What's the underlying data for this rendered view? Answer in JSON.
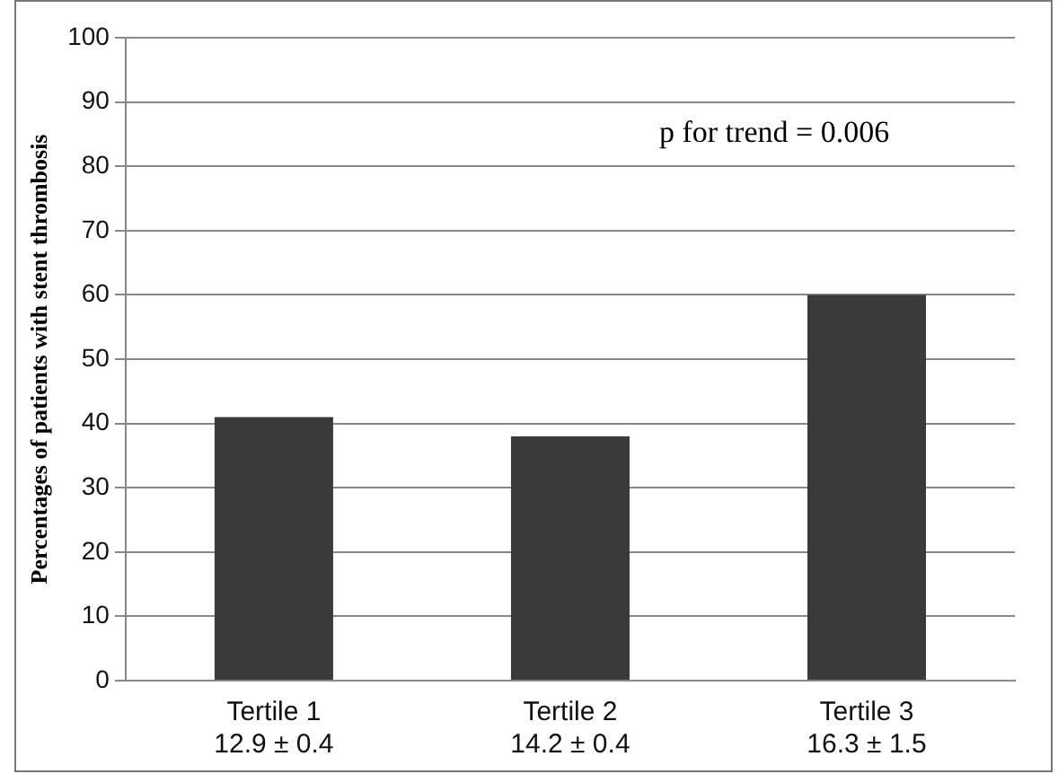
{
  "chart_data": {
    "type": "bar",
    "ylabel": "Percentages of patients with stent thrombosis",
    "categories": [
      "Tertile 1\n12.9 ± 0.4",
      "Tertile 2\n14.2 ± 0.4",
      "Tertile 3\n16.3 ± 1.5"
    ],
    "values": [
      41,
      38,
      60
    ],
    "color": "#3a3a3a",
    "ylim": [
      0,
      100
    ],
    "yticks": [
      0,
      10,
      20,
      30,
      40,
      50,
      60,
      70,
      80,
      90,
      100
    ],
    "grid": "y",
    "legend": false,
    "annotations": [
      "p for trend = 0.006"
    ]
  }
}
